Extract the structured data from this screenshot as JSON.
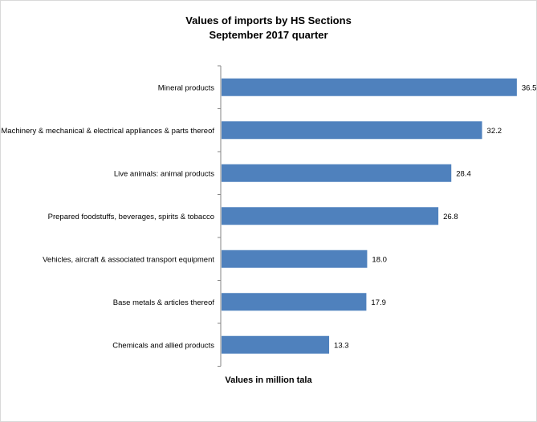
{
  "chart_data": {
    "type": "bar",
    "orientation": "horizontal",
    "title": "Values of imports by HS Sections",
    "subtitle": "September 2017 quarter",
    "xlabel": "Values in million tala",
    "categories": [
      "Mineral products",
      "Machinery & mechanical & electrical appliances & parts thereof",
      "Live animals: animal products",
      "Prepared foodstuffs, beverages, spirits & tobacco",
      "Vehicles, aircraft & associated transport equipment",
      "Base metals & articles thereof",
      "Chemicals and allied products"
    ],
    "values": [
      36.5,
      32.2,
      28.4,
      26.8,
      18.0,
      17.9,
      13.3
    ],
    "data_labels": [
      "36.5",
      "32.2",
      "28.4",
      "26.8",
      "18.0",
      "17.9",
      "13.3"
    ],
    "bar_color": "#4f81bd",
    "xlim": [
      0,
      38
    ],
    "grid": false,
    "legend": "none"
  }
}
